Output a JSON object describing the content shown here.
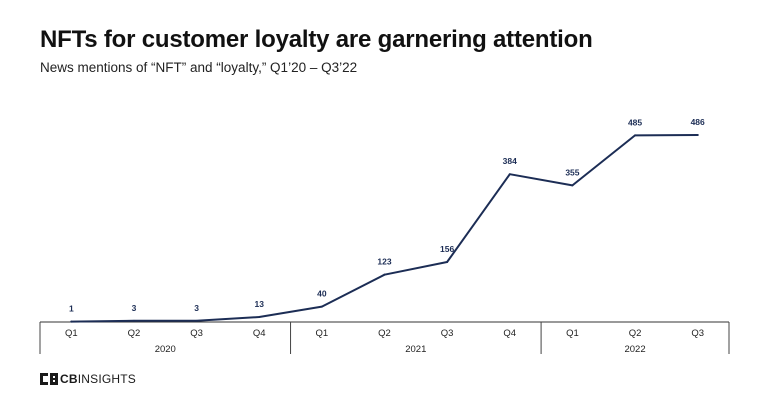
{
  "title": "NFTs for customer loyalty are garnering attention",
  "subtitle": "News mentions of “NFT” and “loyalty,” Q1’20 – Q3’22",
  "logo": {
    "cb": "CB",
    "insights": "INSIGHTS"
  },
  "colors": {
    "line": "#1c2d55",
    "label": "#1c2d55",
    "axis": "#333333",
    "grid_box": "#444444"
  },
  "chart_data": {
    "type": "line",
    "title": "NFTs for customer loyalty are garnering attention",
    "subtitle": "News mentions of “NFT” and “loyalty,” Q1’20 – Q3’22",
    "categories": [
      "Q1",
      "Q2",
      "Q3",
      "Q4",
      "Q1",
      "Q2",
      "Q3",
      "Q4",
      "Q1",
      "Q2",
      "Q3"
    ],
    "groups": [
      {
        "label": "2020",
        "count": 4
      },
      {
        "label": "2021",
        "count": 4
      },
      {
        "label": "2022",
        "count": 3
      }
    ],
    "series": [
      {
        "values": [
          1,
          3,
          3,
          13,
          40,
          123,
          156,
          384,
          355,
          485,
          486
        ]
      }
    ],
    "ylim": [
      0,
      486
    ],
    "data_labels": true,
    "grid": false,
    "legend": "none"
  }
}
